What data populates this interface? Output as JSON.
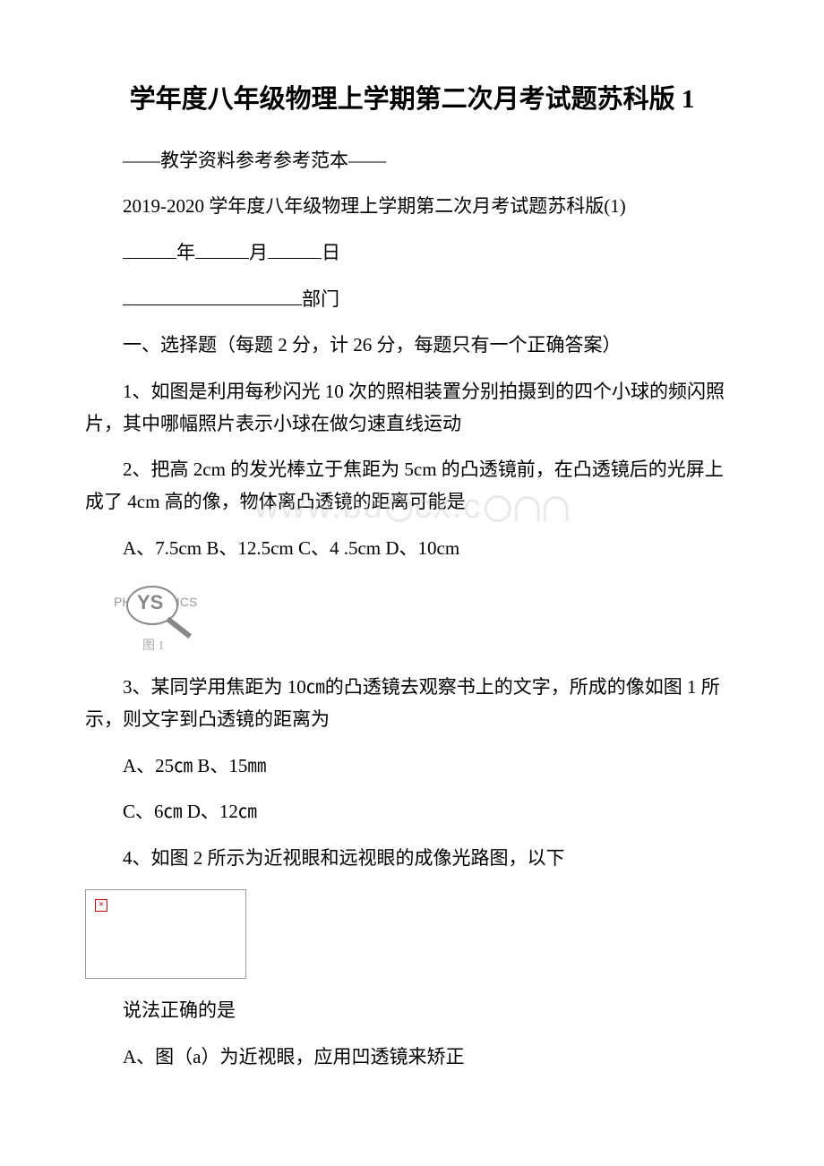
{
  "title": "学年度八年级物理上学期第二次月考试题苏科版 1",
  "subtitle": "——教学资料参考参考范本——",
  "doc_line": "2019-2020 学年度八年级物理上学期第二次月考试题苏科版(1)",
  "date_labels": {
    "year": "年",
    "month": "月",
    "day": "日"
  },
  "dept_label": "部门",
  "section1_header": "一、选择题（每题 2 分，计 26 分，每题只有一个正确答案）",
  "q1": "1、如图是利用每秒闪光 10 次的照相装置分别拍摄到的四个小球的频闪照片，其中哪幅照片表示小球在做匀速直线运动",
  "q2": "2、把高 2cm 的发光棒立于焦距为 5cm 的凸透镜前，在凸透镜后的光屏上成了 4cm 高的像，物体离凸透镜的距离可能是",
  "q2_options": "A、7.5cm B、12.5cm C、4 .5cm D、10cm",
  "watermark_text_left": "www.bd",
  "watermark_text_right": "cx.c",
  "magnifier": {
    "ph": "PH",
    "ys": "YS",
    "ics": "ICS",
    "label": "图 1"
  },
  "q3": "3、某同学用焦距为 10㎝的凸透镜去观察书上的文字，所成的像如图 1 所示，则文字到凸透镜的距离为",
  "q3_opt1": "A、25㎝ B、15㎜",
  "q3_opt2": "C、6㎝ D、12㎝",
  "q4": "4、如图 2 所示为近视眼和远视眼的成像光路图，以下",
  "q4_cont": "说法正确的是",
  "q4_optA": "A、图（a）为近视眼，应用凹透镜来矫正",
  "error_symbol": "×",
  "colors": {
    "text": "#000000",
    "background": "#ffffff",
    "watermark": "rgba(200,200,200,0.4)",
    "border_gray": "#999999",
    "error_red": "#cc0000"
  }
}
